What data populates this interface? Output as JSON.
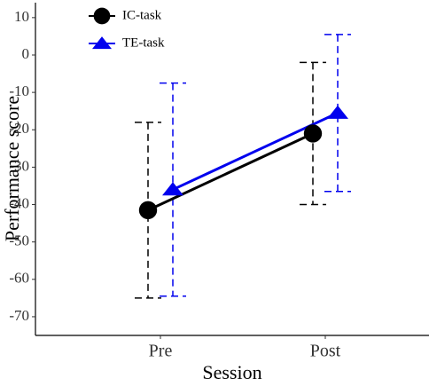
{
  "chart_data": {
    "type": "line",
    "x_label": "Session",
    "y_label": "Performance score",
    "categories": [
      "Pre",
      "Post"
    ],
    "series": [
      {
        "name": "IC-task",
        "color": "#000000",
        "marker": "circle",
        "values": [
          -41.5,
          -21
        ],
        "errors": [
          23.5,
          19
        ]
      },
      {
        "name": "TE-task",
        "color": "#0000ee",
        "marker": "triangle",
        "values": [
          -36,
          -15.5
        ],
        "errors": [
          28.5,
          21
        ]
      }
    ],
    "ylim": [
      -75,
      14
    ],
    "yticks": [
      -70,
      -60,
      -50,
      -40,
      -30,
      -20,
      -10,
      0,
      10
    ],
    "grid": false,
    "legend": "top-left"
  }
}
